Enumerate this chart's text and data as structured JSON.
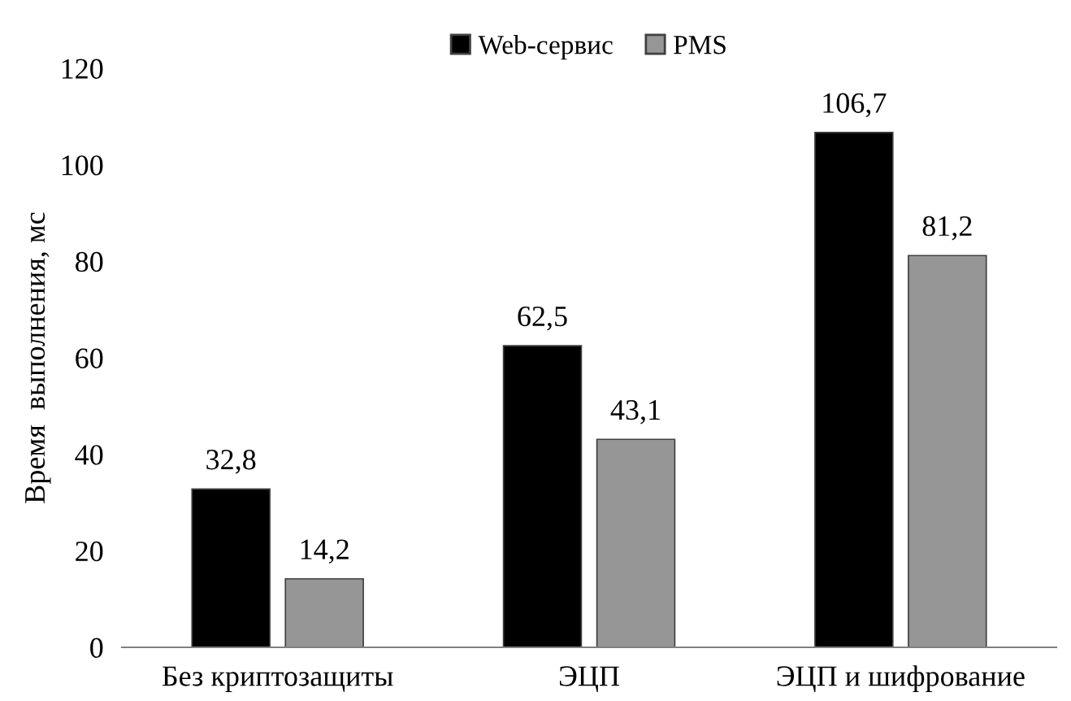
{
  "chart_data": {
    "type": "bar",
    "ylabel": "Время  выполнения, мс",
    "categories": [
      "Без криптозащиты",
      "ЭЦП",
      "ЭЦП и шифрование"
    ],
    "series": [
      {
        "name": "Web-сервис",
        "color": "#000000",
        "values": [
          32.8,
          62.5,
          106.7
        ],
        "value_labels": [
          "32,8",
          "62,5",
          "106,7"
        ]
      },
      {
        "name": "PMS",
        "color": "#969696",
        "values": [
          14.2,
          43.1,
          81.2
        ],
        "value_labels": [
          "14,2",
          "43,1",
          "81,2"
        ]
      }
    ],
    "ylim": [
      0,
      120
    ],
    "yticks": [
      0,
      20,
      40,
      60,
      80,
      100,
      120
    ],
    "grid": false,
    "legend": "top"
  }
}
